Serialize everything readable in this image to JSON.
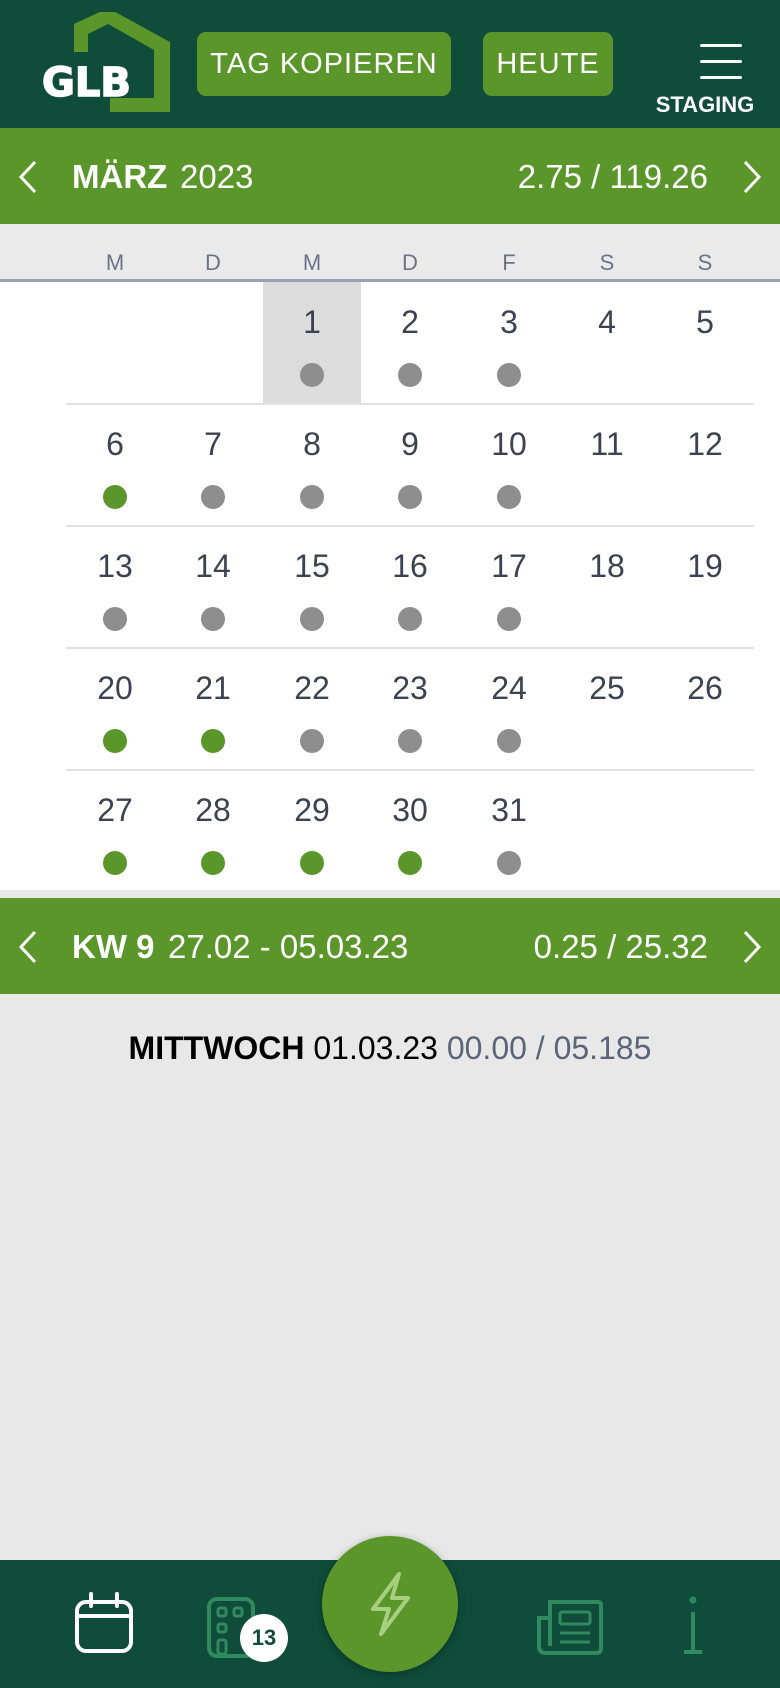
{
  "header": {
    "logo_text": "GLB",
    "copy_day_label": "TAG KOPIEREN",
    "today_label": "HEUTE",
    "environment_label": "STAGING"
  },
  "month_bar": {
    "month": "MÄRZ",
    "year": "2023",
    "hours": "2.75 / 119.26"
  },
  "weekdays": [
    "M",
    "D",
    "M",
    "D",
    "F",
    "S",
    "S"
  ],
  "calendar": {
    "selected_day": "1",
    "weeks": [
      [
        null,
        null,
        {
          "day": "1",
          "dot": "grey"
        },
        {
          "day": "2",
          "dot": "grey"
        },
        {
          "day": "3",
          "dot": "grey"
        },
        {
          "day": "4",
          "dot": ""
        },
        {
          "day": "5",
          "dot": ""
        }
      ],
      [
        {
          "day": "6",
          "dot": "green"
        },
        {
          "day": "7",
          "dot": "grey"
        },
        {
          "day": "8",
          "dot": "grey"
        },
        {
          "day": "9",
          "dot": "grey"
        },
        {
          "day": "10",
          "dot": "grey"
        },
        {
          "day": "11",
          "dot": ""
        },
        {
          "day": "12",
          "dot": ""
        }
      ],
      [
        {
          "day": "13",
          "dot": "grey"
        },
        {
          "day": "14",
          "dot": "grey"
        },
        {
          "day": "15",
          "dot": "grey"
        },
        {
          "day": "16",
          "dot": "grey"
        },
        {
          "day": "17",
          "dot": "grey"
        },
        {
          "day": "18",
          "dot": ""
        },
        {
          "day": "19",
          "dot": ""
        }
      ],
      [
        {
          "day": "20",
          "dot": "green"
        },
        {
          "day": "21",
          "dot": "green"
        },
        {
          "day": "22",
          "dot": "grey"
        },
        {
          "day": "23",
          "dot": "grey"
        },
        {
          "day": "24",
          "dot": "grey"
        },
        {
          "day": "25",
          "dot": ""
        },
        {
          "day": "26",
          "dot": ""
        }
      ],
      [
        {
          "day": "27",
          "dot": "green"
        },
        {
          "day": "28",
          "dot": "green"
        },
        {
          "day": "29",
          "dot": "green"
        },
        {
          "day": "30",
          "dot": "green"
        },
        {
          "day": "31",
          "dot": "grey"
        },
        null,
        null
      ]
    ]
  },
  "week_bar": {
    "week": "KW 9",
    "range": "27.02 - 05.03.23",
    "hours": "0.25 / 25.32"
  },
  "day_info": {
    "day_name": "MITTWOCH",
    "date": "01.03.23",
    "hours": "00.00 / 05.185"
  },
  "bottom_nav": {
    "badge_count": "13",
    "icons": [
      "calendar-icon",
      "building-icon",
      "lightning-icon",
      "newspaper-icon",
      "info-icon"
    ]
  },
  "colors": {
    "header_bg": "#0f4c39",
    "accent_green": "#5b962a",
    "dot_green": "#5b962a",
    "dot_grey": "#8e8e8e",
    "text_dark": "#3b4252"
  }
}
